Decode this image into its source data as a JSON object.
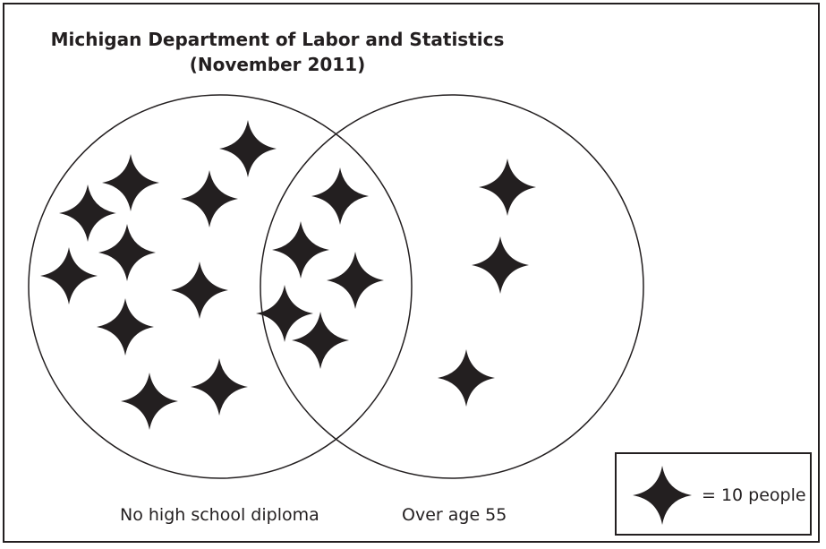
{
  "diagram": {
    "title_line1": "Michigan Department of Labor and Statistics",
    "title_line2": "(November 2011)",
    "sets": [
      {
        "label": "No high school diploma"
      },
      {
        "label": "Over age 55"
      }
    ],
    "regions": [
      {
        "name": "no-diploma-only",
        "stars": 10
      },
      {
        "name": "both",
        "stars": 5
      },
      {
        "name": "over-55-only",
        "stars": 3
      }
    ],
    "legend": {
      "icon": "four-point-star-icon",
      "text": "= 10 people"
    },
    "colors": {
      "ink": "#231f20",
      "background": "#ffffff"
    }
  }
}
